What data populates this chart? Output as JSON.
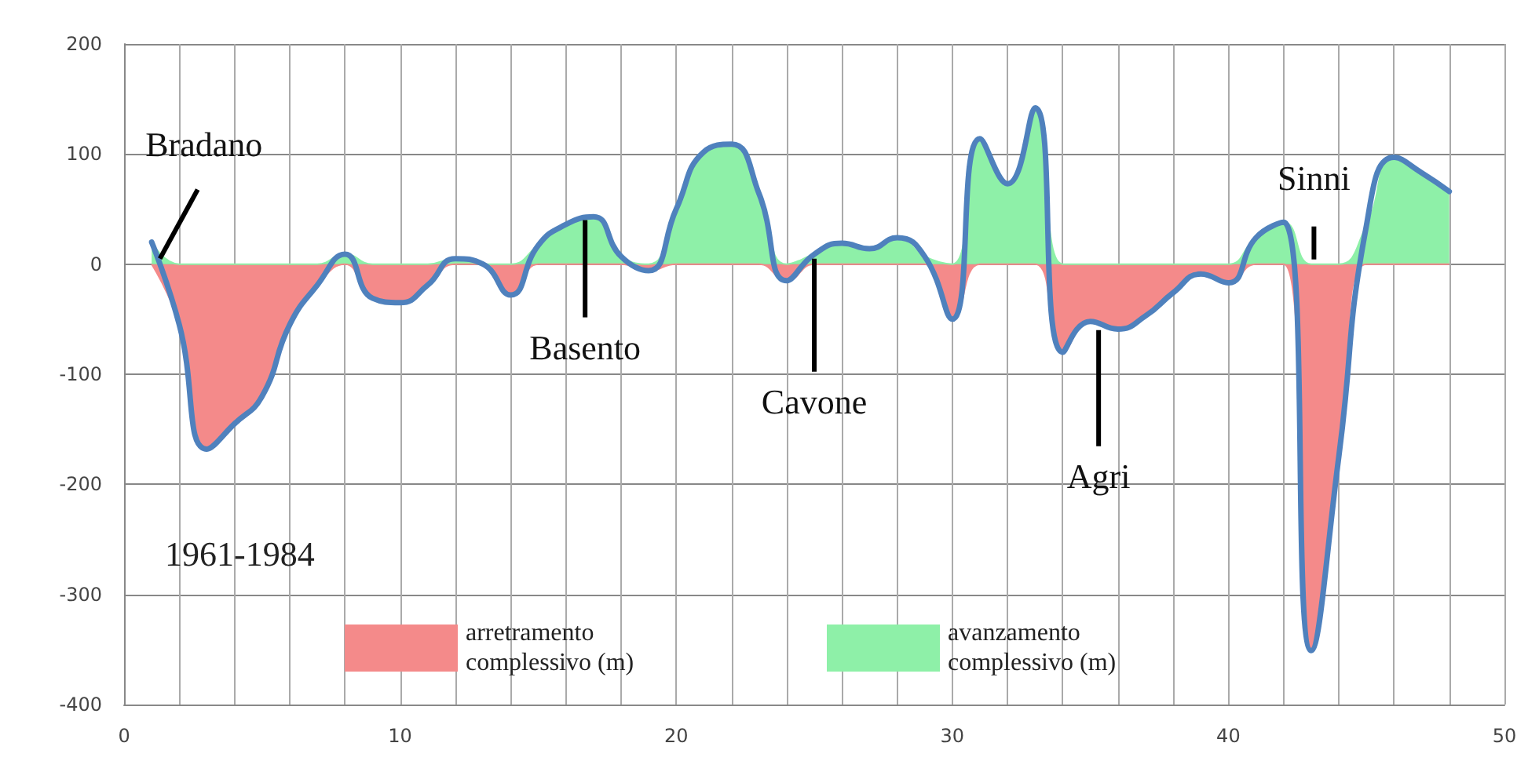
{
  "chart_data": {
    "type": "area",
    "x": [
      1,
      2,
      3,
      4,
      5,
      6,
      7,
      8,
      9,
      10,
      11,
      12,
      13,
      14,
      15,
      16,
      17,
      18,
      19,
      20,
      21,
      22,
      23,
      24,
      25,
      26,
      27,
      28,
      29,
      30,
      31,
      32,
      33,
      34,
      35,
      36,
      37,
      38,
      39,
      40,
      41,
      42,
      43,
      44,
      45,
      46,
      47,
      48
    ],
    "series": [
      {
        "name": "arretramento complessivo (m)",
        "color": "#f48a8a",
        "values": [
          0,
          -55,
          -168,
          -145,
          -120,
          -55,
          -19,
          0,
          -31,
          -35,
          -19,
          0,
          0,
          -28,
          0,
          0,
          0,
          0,
          -6,
          0,
          0,
          0,
          0,
          -15,
          0,
          0,
          0,
          0,
          0,
          -50,
          0,
          0,
          0,
          -80,
          -52,
          -59,
          -47,
          -26,
          -9,
          -17,
          0,
          0,
          -351,
          -175,
          0,
          0,
          0,
          0
        ]
      },
      {
        "name": "avanzamento complessivo (m)",
        "color": "#8ef0a8",
        "values": [
          20,
          0,
          0,
          0,
          0,
          0,
          0,
          9,
          0,
          0,
          0,
          5,
          0,
          0,
          17,
          36,
          43,
          7,
          0,
          50,
          102,
          109,
          64,
          0,
          9,
          19,
          14,
          24,
          7,
          0,
          114,
          73,
          142,
          0,
          0,
          0,
          0,
          0,
          0,
          0,
          24,
          38,
          0,
          0,
          35,
          97,
          83,
          66
        ]
      },
      {
        "type": "line",
        "color": "#4f81bd",
        "values": [
          20,
          -55,
          -168,
          -145,
          -120,
          -55,
          -19,
          9,
          -31,
          -35,
          -19,
          5,
          0,
          -28,
          17,
          36,
          43,
          7,
          -6,
          50,
          102,
          109,
          64,
          -15,
          9,
          19,
          14,
          24,
          7,
          -50,
          114,
          73,
          142,
          -80,
          -52,
          -59,
          -47,
          -26,
          -9,
          -17,
          24,
          38,
          -351,
          -175,
          35,
          97,
          83,
          66
        ]
      }
    ],
    "xlim": [
      0,
      50
    ],
    "xticks": [
      0,
      {
        "value": 2,
        "label": null
      },
      {
        "value": 4,
        "label": null
      },
      {
        "value": 6,
        "label": null
      },
      {
        "value": 8,
        "label": null
      },
      10,
      {
        "value": 12,
        "label": null
      },
      {
        "value": 14,
        "label": null
      },
      {
        "value": 16,
        "label": null
      },
      {
        "value": 18,
        "label": null
      },
      20,
      {
        "value": 22,
        "label": null
      },
      {
        "value": 24,
        "label": null
      },
      {
        "value": 26,
        "label": null
      },
      {
        "value": 28,
        "label": null
      },
      30,
      {
        "value": 32,
        "label": null
      },
      {
        "value": 34,
        "label": null
      },
      {
        "value": 36,
        "label": null
      },
      {
        "value": 38,
        "label": null
      },
      40,
      {
        "value": 42,
        "label": null
      },
      {
        "value": 44,
        "label": null
      },
      {
        "value": 46,
        "label": null
      },
      {
        "value": 48,
        "label": null
      },
      50
    ],
    "ylim": [
      -400,
      200
    ],
    "yticks": [
      -400,
      -300,
      -200,
      -100,
      0,
      100,
      200
    ],
    "grid": true,
    "legend": "bottom",
    "marker": "none",
    "line_style": "solid",
    "annotations": [
      {
        "text": "Bradano",
        "x": 1.3,
        "y": 5
      },
      {
        "text": "Basento",
        "x": 16.7,
        "y": 40
      },
      {
        "text": "Cavone",
        "x": 25,
        "y": 5
      },
      {
        "text": "Agri",
        "x": 35.3,
        "y": -60
      },
      {
        "text": "Sinni",
        "x": 43.1,
        "y": 0
      },
      "1961-1984"
    ]
  }
}
